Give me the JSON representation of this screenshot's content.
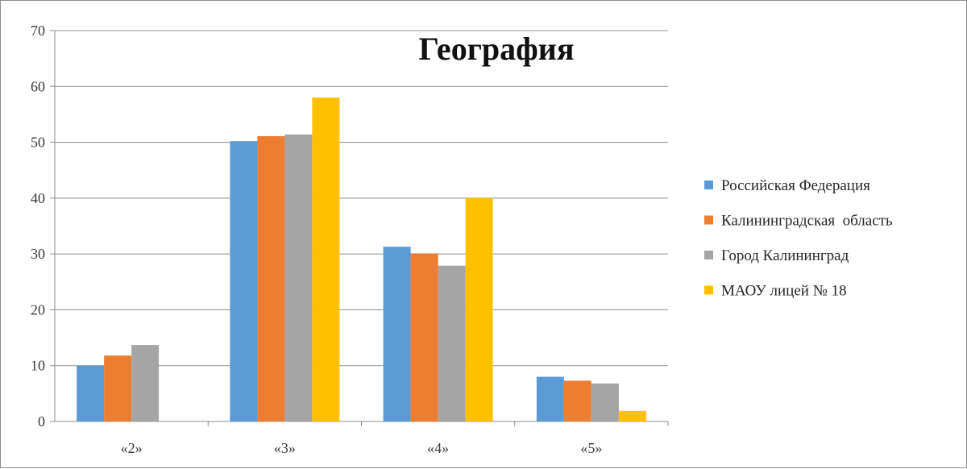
{
  "chart_data": {
    "type": "bar",
    "title": "География",
    "xlabel": "",
    "ylabel": "",
    "ylim": [
      0,
      70
    ],
    "yticks": [
      0,
      10,
      20,
      30,
      40,
      50,
      60,
      70
    ],
    "grid": true,
    "legend_position": "right",
    "categories": [
      "«2»",
      "«3»",
      "«4»",
      "«5»"
    ],
    "series": [
      {
        "name": "Российская Федерация",
        "color": "#5b9bd5",
        "values": [
          10,
          50.2,
          31.3,
          8
        ]
      },
      {
        "name": "Калининградская  область",
        "color": "#ed7d31",
        "values": [
          11.8,
          51.1,
          30.1,
          7.3
        ]
      },
      {
        "name": "Город Калининград",
        "color": "#a5a5a5",
        "values": [
          13.7,
          51.4,
          27.9,
          6.8
        ]
      },
      {
        "name": "МАОУ лицей № 18",
        "color": "#ffc000",
        "values": [
          0,
          58,
          40,
          1.9
        ]
      }
    ]
  }
}
